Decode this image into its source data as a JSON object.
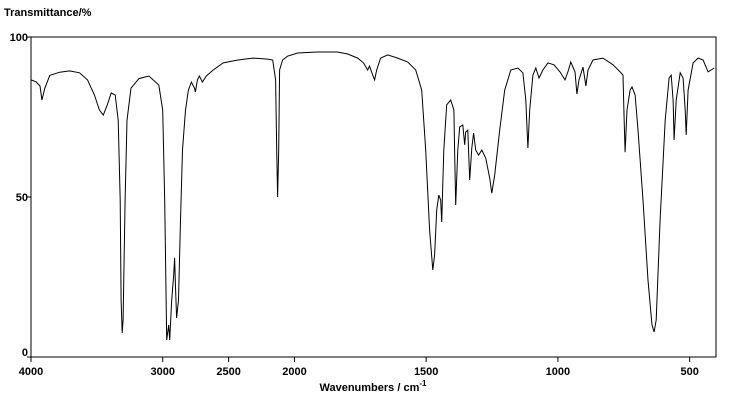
{
  "chart_data": {
    "type": "line",
    "title": "Transmittance/%",
    "xlabel": "Wavenumbers / cm",
    "xlabel_sup": "-1",
    "xlim": [
      4000,
      400
    ],
    "xbreak": 2000,
    "ylim": [
      0,
      100
    ],
    "xticks": [
      4000,
      3000,
      2500,
      2000,
      1500,
      1000,
      500
    ],
    "yticks": [
      0,
      50,
      100
    ],
    "color": "#000000",
    "x": [
      4000,
      3962,
      3932,
      3917,
      3895,
      3857,
      3782,
      3707,
      3632,
      3571,
      3519,
      3481,
      3451,
      3421,
      3391,
      3361,
      3338,
      3323,
      3316,
      3308,
      3301,
      3286,
      3271,
      3241,
      3180,
      3105,
      3030,
      3000,
      2985,
      2970,
      2955,
      2947,
      2932,
      2917,
      2910,
      2902,
      2895,
      2880,
      2865,
      2850,
      2827,
      2805,
      2782,
      2759,
      2752,
      2737,
      2722,
      2699,
      2669,
      2617,
      2541,
      2429,
      2316,
      2203,
      2165,
      2143,
      2135,
      2128,
      2120,
      2113,
      2090,
      2053,
      2000,
      1989,
      1913,
      1837,
      1798,
      1760,
      1738,
      1722,
      1715,
      1703,
      1696,
      1688,
      1673,
      1646,
      1608,
      1570,
      1540,
      1517,
      1502,
      1487,
      1475,
      1468,
      1460,
      1452,
      1445,
      1441,
      1433,
      1422,
      1407,
      1395,
      1392,
      1388,
      1380,
      1373,
      1361,
      1354,
      1350,
      1342,
      1335,
      1327,
      1320,
      1312,
      1301,
      1289,
      1274,
      1259,
      1251,
      1240,
      1221,
      1202,
      1179,
      1152,
      1133,
      1122,
      1114,
      1107,
      1095,
      1084,
      1072,
      1057,
      1038,
      1015,
      992,
      973,
      962,
      951,
      935,
      928,
      920,
      905,
      894,
      886,
      867,
      829,
      791,
      764,
      753,
      749,
      745,
      738,
      726,
      719,
      707,
      696,
      677,
      658,
      643,
      635,
      627,
      612,
      593,
      578,
      570,
      563,
      559,
      551,
      536,
      525,
      517,
      513,
      506,
      487,
      468,
      449,
      430,
      407
    ],
    "values": [
      86.6,
      86,
      84.7,
      80.3,
      84,
      88,
      89,
      89.4,
      88.8,
      86.6,
      81.9,
      77.2,
      75.6,
      78.8,
      82.5,
      81.9,
      74,
      49,
      17.8,
      7.5,
      11.6,
      49,
      74,
      84,
      87,
      87.8,
      85,
      77.2,
      49,
      5.3,
      10,
      5.3,
      17.8,
      25.6,
      31,
      21,
      12.2,
      17.8,
      42.8,
      64.7,
      77.2,
      83.4,
      85.9,
      84,
      82.8,
      86.6,
      87.8,
      85.9,
      87.8,
      89.7,
      91.9,
      92.8,
      93.4,
      93.1,
      92.8,
      86.6,
      64.7,
      50,
      64.7,
      89.7,
      92.8,
      94,
      94.7,
      95,
      95.3,
      95.3,
      94.7,
      93.4,
      91.9,
      89.7,
      90.9,
      88.1,
      86.6,
      89.7,
      93.4,
      94.4,
      93.4,
      92.2,
      89.7,
      83.4,
      64.7,
      39.7,
      27.2,
      31.9,
      45.9,
      50.6,
      49,
      42.2,
      64.7,
      78.8,
      80.3,
      77.2,
      64.7,
      47.5,
      64.7,
      71.9,
      72.5,
      66.3,
      70.3,
      70.9,
      55.3,
      65.3,
      70,
      64.7,
      63.1,
      64.7,
      62.2,
      55.9,
      51.2,
      56.9,
      70.9,
      83.4,
      89.7,
      90.3,
      88.8,
      80.3,
      65.3,
      77.2,
      88.1,
      90.3,
      87.2,
      89.7,
      91.9,
      91.3,
      89.1,
      86.6,
      89.1,
      92.2,
      89.1,
      82.2,
      86.6,
      90.6,
      84.7,
      89.7,
      92.8,
      93.4,
      91.3,
      89.1,
      88.1,
      74.7,
      64,
      77.2,
      83.4,
      84.4,
      81.9,
      70.9,
      49,
      24,
      10,
      7.8,
      11.6,
      42.8,
      74,
      87.2,
      88.1,
      80.3,
      67.8,
      80.3,
      88.8,
      87.2,
      77.2,
      69.4,
      83.4,
      91.9,
      93.4,
      92.8,
      89.1,
      90.3
    ]
  }
}
